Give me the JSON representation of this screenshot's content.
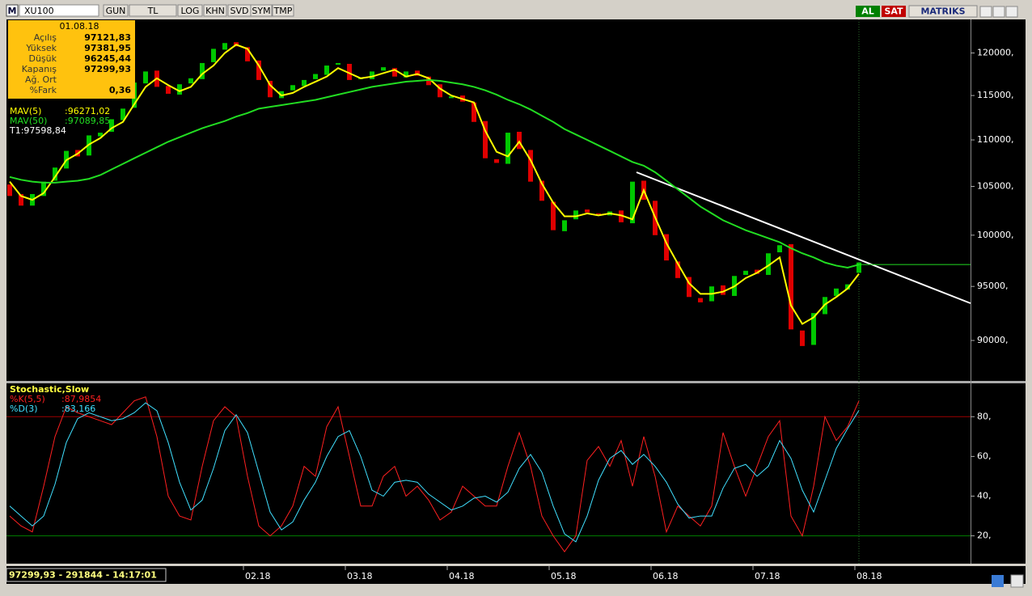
{
  "toolbar": {
    "logo": "M",
    "symbol": "XU100",
    "buttons": [
      "GUN",
      "TL",
      "LOG",
      "KHN",
      "SVD",
      "SYM",
      "TMP"
    ],
    "actions": [
      "AL",
      "SAT"
    ],
    "brand": "MATRIKS"
  },
  "info_box": {
    "date": "01.08.18",
    "rows": [
      {
        "label": "Açılış",
        "value": "97121,83"
      },
      {
        "label": "Yüksek",
        "value": "97381,95"
      },
      {
        "label": "Düşük",
        "value": "96245,44"
      },
      {
        "label": "Kapanış",
        "value": "97299,93"
      },
      {
        "label": "Ağ. Ort"
      },
      {
        "label": "%Fark",
        "value": "0,36"
      }
    ]
  },
  "status": "97299,93 - 291844 - 14:17:01",
  "chart_data": [
    {
      "type": "candlestick",
      "log": true,
      "ylim": [
        86500,
        124000
      ],
      "yticks": [
        {
          "value": 90000,
          "label": "90000,"
        },
        {
          "value": 95000,
          "label": "95000,"
        },
        {
          "value": 100000,
          "label": "100000,"
        },
        {
          "value": 105000,
          "label": "105000,"
        },
        {
          "value": 110000,
          "label": "110000,"
        },
        {
          "value": 115000,
          "label": "115000,"
        },
        {
          "value": 120000,
          "label": "120000,"
        }
      ],
      "up_color": "#00c800",
      "down_color": "#e00000",
      "open": [
        105200,
        104200,
        103000,
        104000,
        105600,
        106900,
        108900,
        108300,
        110400,
        110900,
        112200,
        113600,
        116400,
        117900,
        116100,
        115100,
        116400,
        116900,
        118900,
        120400,
        121300,
        120700,
        119100,
        116700,
        114700,
        115600,
        116100,
        116900,
        117400,
        118600,
        118700,
        116900,
        116900,
        117900,
        118200,
        117100,
        117900,
        117200,
        116300,
        114700,
        115000,
        114200,
        112100,
        107900,
        107400,
        110900,
        108900,
        105600,
        103400,
        100400,
        101600,
        102600,
        102200,
        102000,
        102500,
        101200,
        105600,
        103500,
        100100,
        97400,
        95900,
        93900,
        93600,
        95100,
        94100,
        96100,
        96600,
        96100,
        98300,
        99100,
        90900,
        89600,
        92400,
        94100,
        94700,
        96300
      ],
      "close": [
        104000,
        103000,
        104200,
        105500,
        107000,
        108800,
        108200,
        110500,
        110800,
        112300,
        113500,
        116500,
        117800,
        116000,
        115200,
        116300,
        117000,
        118800,
        120500,
        121200,
        120800,
        119000,
        116800,
        114800,
        115500,
        116200,
        116800,
        117500,
        118500,
        118800,
        116800,
        117000,
        117800,
        118300,
        117200,
        117800,
        117300,
        116200,
        114800,
        114900,
        114300,
        112000,
        108000,
        107500,
        110800,
        109000,
        105500,
        103500,
        100500,
        101500,
        102500,
        102300,
        102100,
        102400,
        101300,
        105500,
        103600,
        100000,
        97500,
        95800,
        94000,
        93500,
        95000,
        94200,
        96000,
        96500,
        96200,
        98200,
        99000,
        91000,
        89500,
        92500,
        94000,
        94800,
        95200,
        97300
      ],
      "series": [
        {
          "name": "MAV(5)",
          "legend_text": ":96271,02",
          "color": "#ffff00",
          "values": [
            105500,
            104000,
            103600,
            104300,
            106000,
            107800,
            108500,
            109500,
            110200,
            111300,
            112000,
            114000,
            116000,
            117000,
            116200,
            115500,
            116000,
            117500,
            118500,
            120000,
            121000,
            120500,
            118500,
            116200,
            115000,
            115300,
            116000,
            116600,
            117200,
            118200,
            117600,
            117000,
            117200,
            117600,
            118000,
            117200,
            117500,
            117000,
            115800,
            115000,
            114600,
            114200,
            111000,
            108700,
            108200,
            109800,
            107800,
            105300,
            103300,
            101900,
            101900,
            102200,
            102000,
            102200,
            102000,
            101600,
            104600,
            101800,
            99200,
            97200,
            95300,
            94300,
            94300,
            94500,
            95000,
            95800,
            96300,
            97000,
            97800,
            93200,
            91500,
            92100,
            93300,
            94000,
            94800,
            96200
          ]
        },
        {
          "name": "MAV(50)",
          "legend_text": ":97089,85",
          "color": "#22dd22",
          "values": [
            106000,
            105700,
            105500,
            105400,
            105400,
            105500,
            105600,
            105800,
            106200,
            106800,
            107400,
            108000,
            108600,
            109200,
            109800,
            110300,
            110800,
            111300,
            111700,
            112100,
            112600,
            113000,
            113500,
            113700,
            113900,
            114100,
            114300,
            114500,
            114800,
            115100,
            115400,
            115700,
            116000,
            116200,
            116400,
            116600,
            116700,
            116800,
            116700,
            116500,
            116300,
            116000,
            115600,
            115100,
            114500,
            114000,
            113400,
            112700,
            112000,
            111200,
            110600,
            110000,
            109400,
            108800,
            108200,
            107600,
            107200,
            106500,
            105600,
            104700,
            103800,
            102900,
            102200,
            101500,
            101000,
            100500,
            100100,
            99700,
            99300,
            98700,
            98200,
            97800,
            97300,
            97000,
            96800,
            97100
          ]
        }
      ],
      "annotation": "T1:97598,84"
    },
    {
      "type": "line",
      "title": "Stochastic,Slow",
      "ylim": [
        6,
        96
      ],
      "yticks": [
        {
          "value": 20,
          "label": "20,"
        },
        {
          "value": 40,
          "label": "40,"
        },
        {
          "value": 60,
          "label": "60,"
        },
        {
          "value": 80,
          "label": "80,"
        }
      ],
      "reference_lines": [
        {
          "value": 80,
          "color": "#a00000"
        },
        {
          "value": 20,
          "color": "#008000"
        }
      ],
      "categories": [
        null,
        null,
        null,
        null,
        null,
        null,
        null,
        null,
        null,
        null,
        null,
        null,
        null,
        null,
        null,
        null,
        null,
        null,
        null,
        null,
        null,
        "02.18",
        null,
        null,
        null,
        null,
        null,
        null,
        null,
        null,
        "03.18",
        null,
        null,
        null,
        null,
        null,
        null,
        null,
        null,
        "04.18",
        null,
        null,
        null,
        null,
        null,
        null,
        null,
        null,
        "05.18",
        null,
        null,
        null,
        null,
        null,
        null,
        null,
        null,
        "06.18",
        null,
        null,
        null,
        null,
        null,
        null,
        null,
        null,
        "07.18",
        null,
        null,
        null,
        null,
        null,
        null,
        null,
        null,
        "08.18"
      ],
      "series": [
        {
          "name": "%K(5,5)",
          "legend_text": ":87,9854",
          "color": "#ff2020",
          "values": [
            30,
            25,
            22,
            45,
            70,
            85,
            82,
            80,
            78,
            76,
            82,
            88,
            90,
            70,
            40,
            30,
            28,
            55,
            78,
            85,
            80,
            50,
            25,
            20,
            25,
            35,
            55,
            50,
            75,
            85,
            60,
            35,
            35,
            50,
            55,
            40,
            45,
            38,
            28,
            32,
            45,
            40,
            35,
            35,
            55,
            72,
            55,
            30,
            20,
            12,
            20,
            58,
            65,
            55,
            68,
            45,
            70,
            50,
            22,
            35,
            30,
            25,
            35,
            72,
            55,
            40,
            55,
            70,
            78,
            30,
            20,
            45,
            80,
            68,
            75,
            87.9854
          ]
        },
        {
          "name": "%D(3)",
          "legend_text": ":83,166",
          "color": "#40e0ff",
          "values": [
            35,
            30,
            25,
            30,
            46,
            67,
            79,
            82,
            80,
            78,
            79,
            82,
            87,
            83,
            67,
            47,
            33,
            38,
            54,
            73,
            81,
            72,
            52,
            32,
            23,
            27,
            38,
            47,
            60,
            70,
            73,
            60,
            43,
            40,
            47,
            48,
            47,
            41,
            37,
            33,
            35,
            39,
            40,
            37,
            42,
            54,
            61,
            52,
            35,
            21,
            17,
            30,
            48,
            59,
            63,
            56,
            61,
            55,
            47,
            36,
            29,
            30,
            30,
            44,
            54,
            56,
            50,
            55,
            68,
            59,
            43,
            32,
            48,
            64,
            74,
            83.166
          ]
        }
      ]
    }
  ]
}
